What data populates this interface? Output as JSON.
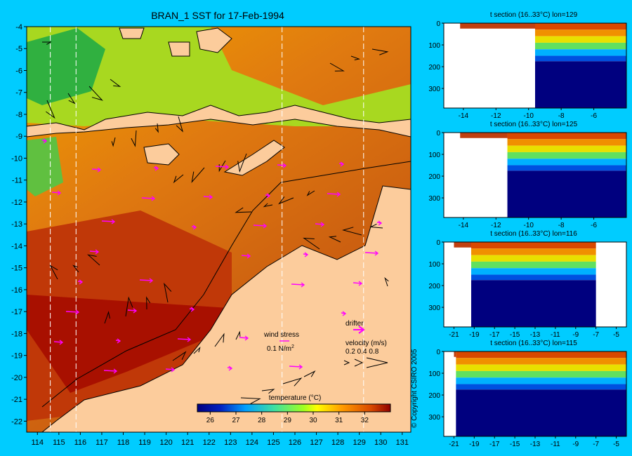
{
  "main": {
    "title": "BRAN_1 SST for 17-Feb-1994",
    "x_ticks": [
      "114",
      "115",
      "116",
      "117",
      "118",
      "119",
      "120",
      "121",
      "122",
      "123",
      "124",
      "125",
      "126",
      "127",
      "128",
      "129",
      "130",
      "131"
    ],
    "y_ticks": [
      "-4",
      "-5",
      "-6",
      "-7",
      "-8",
      "-9",
      "-10",
      "-11",
      "-12",
      "-13",
      "-14",
      "-15",
      "-16",
      "-17",
      "-18",
      "-19",
      "-20",
      "-21",
      "-22"
    ],
    "legend": {
      "wind_label": "wind stress",
      "wind_unit": "0.1 N/m",
      "wind_unit_sup": "2",
      "drifter_label": "drifter",
      "velocity_label": "velocity (m/s)",
      "velocity_values": "0.2 0.4 0.8"
    },
    "colorbar": {
      "label": "temperature (°C)",
      "ticks": [
        "26",
        "27",
        "28",
        "29",
        "30",
        "31",
        "32"
      ]
    }
  },
  "chart_data": [
    {
      "type": "heatmap",
      "title": "BRAN_1 SST for 17-Feb-1994",
      "xlim": [
        113.5,
        131.4
      ],
      "ylim": [
        -22.5,
        -4
      ],
      "colorbar_range": [
        25.5,
        33
      ],
      "colorbar_ticks": [
        26,
        27,
        28,
        29,
        30,
        31,
        32
      ]
    },
    {
      "type": "heatmap",
      "title": "t section (16..33°C) lon=129",
      "x_ticks": [
        "-14",
        "-12",
        "-10",
        "-8",
        "-6"
      ],
      "y_ticks": [
        "0",
        "100",
        "200",
        "300"
      ],
      "xlim": [
        -15.2,
        -4
      ],
      "ylim": [
        0,
        390
      ]
    },
    {
      "type": "heatmap",
      "title": "t section (16..33°C) lon=125",
      "x_ticks": [
        "-14",
        "-12",
        "-10",
        "-8",
        "-6"
      ],
      "y_ticks": [
        "0",
        "100",
        "200",
        "300"
      ],
      "xlim": [
        -15.2,
        -4
      ],
      "ylim": [
        0,
        390
      ]
    },
    {
      "type": "heatmap",
      "title": "t section (16..33°C) lon=116",
      "x_ticks": [
        "-21",
        "-19",
        "-17",
        "-15",
        "-13",
        "-11",
        "-9",
        "-7",
        "-5"
      ],
      "y_ticks": [
        "0",
        "100",
        "200",
        "300"
      ],
      "xlim": [
        -22,
        -4
      ],
      "ylim": [
        0,
        390
      ]
    },
    {
      "type": "heatmap",
      "title": "t section (16..33°C) lon=115",
      "x_ticks": [
        "-21",
        "-19",
        "-17",
        "-15",
        "-13",
        "-11",
        "-9",
        "-7",
        "-5"
      ],
      "y_ticks": [
        "0",
        "100",
        "200",
        "300"
      ],
      "xlim": [
        -22,
        -4
      ],
      "ylim": [
        0,
        390
      ]
    }
  ],
  "copyright": "© Copyright CSIRO 2005",
  "colors": {
    "background": "#00ccff",
    "land": "#fccc9c",
    "drifter": "#ff00ff",
    "deep": "#00007f"
  }
}
